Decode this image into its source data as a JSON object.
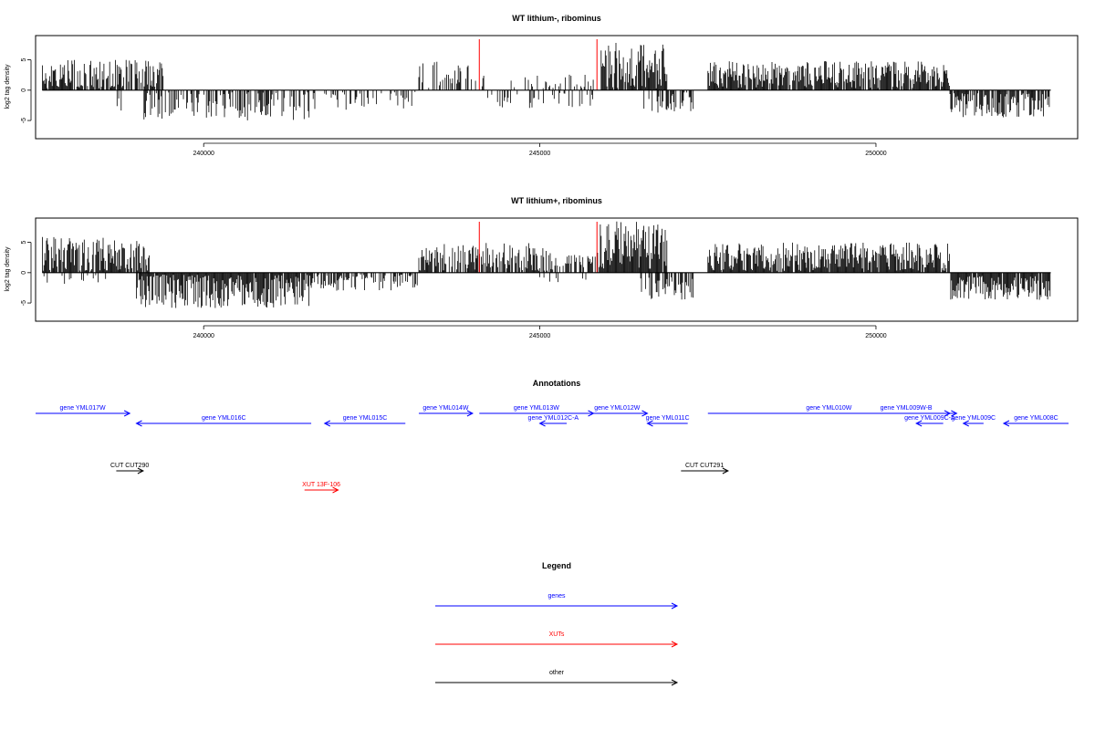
{
  "chart_data": [
    {
      "type": "bar",
      "title": "WT lithium-, ribominus",
      "ylabel": "log2 tag density",
      "xlabel": "",
      "xlim": [
        237500,
        253000
      ],
      "ylim": [
        -8,
        9
      ],
      "xticks": [
        240000,
        245000,
        250000
      ],
      "yticks": [
        5,
        0,
        -5
      ],
      "ytick_labels": [
        "5",
        "0",
        "-5"
      ],
      "markers": [
        244100,
        245850
      ],
      "segments": [
        {
          "start": 237600,
          "end": 239400,
          "base": 2.5,
          "amp": 2.5,
          "sign": 1,
          "dense": 0.8
        },
        {
          "start": 238700,
          "end": 238800,
          "base": 2.5,
          "amp": 1.5,
          "sign": -1,
          "dense": 0.3
        },
        {
          "start": 239100,
          "end": 241800,
          "base": 2.5,
          "amp": 2.5,
          "sign": -1,
          "dense": 0.55
        },
        {
          "start": 241800,
          "end": 243200,
          "base": 1.5,
          "amp": 1.8,
          "sign": -1,
          "dense": 0.3
        },
        {
          "start": 243200,
          "end": 244200,
          "base": 2.5,
          "amp": 2.5,
          "sign": 1,
          "dense": 0.35
        },
        {
          "start": 244200,
          "end": 245800,
          "base": 1.5,
          "amp": 1.5,
          "sign": -1,
          "dense": 0.25
        },
        {
          "start": 244500,
          "end": 245800,
          "base": 1.2,
          "amp": 1.5,
          "sign": 1,
          "dense": 0.2
        },
        {
          "start": 245900,
          "end": 246900,
          "base": 4.0,
          "amp": 4.0,
          "sign": 1,
          "dense": 0.95
        },
        {
          "start": 246500,
          "end": 247300,
          "base": 2.0,
          "amp": 1.8,
          "sign": -1,
          "dense": 0.5
        },
        {
          "start": 247500,
          "end": 251100,
          "base": 2.5,
          "amp": 2.3,
          "sign": 1,
          "dense": 0.9
        },
        {
          "start": 251100,
          "end": 252600,
          "base": 2.5,
          "amp": 2.0,
          "sign": -1,
          "dense": 0.8
        }
      ]
    },
    {
      "type": "bar",
      "title": "WT lithium+, ribominus",
      "ylabel": "log2 tag density",
      "xlabel": "",
      "xlim": [
        237500,
        253000
      ],
      "ylim": [
        -8,
        9
      ],
      "xticks": [
        240000,
        245000,
        250000
      ],
      "yticks": [
        5,
        0,
        -5
      ],
      "ytick_labels": [
        "5",
        "0",
        "-5"
      ],
      "markers": [
        244100,
        245850
      ],
      "segments": [
        {
          "start": 237600,
          "end": 239200,
          "base": 3.0,
          "amp": 3.0,
          "sign": 1,
          "dense": 0.9
        },
        {
          "start": 237600,
          "end": 238600,
          "base": 1.0,
          "amp": 1.0,
          "sign": -1,
          "dense": 0.15
        },
        {
          "start": 239000,
          "end": 241600,
          "base": 3.0,
          "amp": 3.0,
          "sign": -1,
          "dense": 0.95
        },
        {
          "start": 241600,
          "end": 243200,
          "base": 1.5,
          "amp": 1.5,
          "sign": -1,
          "dense": 0.55
        },
        {
          "start": 243200,
          "end": 245200,
          "base": 2.5,
          "amp": 2.5,
          "sign": 1,
          "dense": 0.75
        },
        {
          "start": 245200,
          "end": 245900,
          "base": 2.0,
          "amp": 1.5,
          "sign": 1,
          "dense": 0.5
        },
        {
          "start": 245000,
          "end": 245700,
          "base": 1.5,
          "amp": 1.0,
          "sign": -1,
          "dense": 0.2
        },
        {
          "start": 245900,
          "end": 246900,
          "base": 4.5,
          "amp": 4.0,
          "sign": 1,
          "dense": 0.98
        },
        {
          "start": 246500,
          "end": 247300,
          "base": 2.5,
          "amp": 2.0,
          "sign": -1,
          "dense": 0.6
        },
        {
          "start": 247500,
          "end": 251100,
          "base": 2.5,
          "amp": 2.5,
          "sign": 1,
          "dense": 0.95
        },
        {
          "start": 251100,
          "end": 252600,
          "base": 2.5,
          "amp": 2.0,
          "sign": -1,
          "dense": 0.9
        }
      ]
    }
  ],
  "annotations": {
    "title": "Annotations",
    "features": [
      {
        "label": "gene YML017W",
        "start": 237000,
        "end": 238900,
        "strand": "+",
        "track": 1,
        "kind": "genes"
      },
      {
        "label": "gene YML016C",
        "start": 239000,
        "end": 241600,
        "strand": "-",
        "track": 2,
        "kind": "genes"
      },
      {
        "label": "gene YML015C",
        "start": 241800,
        "end": 243000,
        "strand": "-",
        "track": 2,
        "kind": "genes"
      },
      {
        "label": "gene YML014W",
        "start": 243200,
        "end": 244000,
        "strand": "+",
        "track": 1,
        "kind": "genes"
      },
      {
        "label": "gene YML013W",
        "start": 244100,
        "end": 245800,
        "strand": "+",
        "track": 1,
        "kind": "genes"
      },
      {
        "label": "gene YML012C-A",
        "start": 245000,
        "end": 245400,
        "strand": "-",
        "track": 2,
        "kind": "genes"
      },
      {
        "label": "gene YML012W",
        "start": 245700,
        "end": 246600,
        "strand": "+",
        "track": 1,
        "kind": "genes"
      },
      {
        "label": "gene YML011C",
        "start": 246600,
        "end": 247200,
        "strand": "-",
        "track": 2,
        "kind": "genes"
      },
      {
        "label": "gene YML010W",
        "start": 247500,
        "end": 251100,
        "strand": "+",
        "track": 1,
        "kind": "genes"
      },
      {
        "label": "gene YML009W-B",
        "start": 249700,
        "end": 251200,
        "strand": "+",
        "track": 1,
        "kind": "genes"
      },
      {
        "label": "gene YML009C-A",
        "start": 250600,
        "end": 251000,
        "strand": "-",
        "track": 2,
        "kind": "genes"
      },
      {
        "label": "gene YML009C",
        "start": 251300,
        "end": 251600,
        "strand": "-",
        "track": 2,
        "kind": "genes"
      },
      {
        "label": "gene YML008C",
        "start": 251900,
        "end": 253100,
        "strand": "-",
        "track": 2,
        "kind": "genes"
      },
      {
        "label": "CUT CUT290",
        "start": 238700,
        "end": 239100,
        "strand": "+",
        "track": 3,
        "kind": "other"
      },
      {
        "label": "CUT CUT291",
        "start": 247100,
        "end": 247800,
        "strand": "+",
        "track": 3,
        "kind": "other"
      },
      {
        "label": "XUT 13F-106",
        "start": 241500,
        "end": 242000,
        "strand": "+",
        "track": 4,
        "kind": "XUTs"
      }
    ]
  },
  "legend": {
    "title": "Legend",
    "items": [
      {
        "label": "genes",
        "kind": "genes"
      },
      {
        "label": "XUTs",
        "kind": "XUTs"
      },
      {
        "label": "other",
        "kind": "other"
      }
    ]
  },
  "colors": {
    "genes": "#0000ff",
    "XUTs": "#ff0000",
    "other": "#000000",
    "marker": "#ff0000",
    "bars": "#000000"
  }
}
